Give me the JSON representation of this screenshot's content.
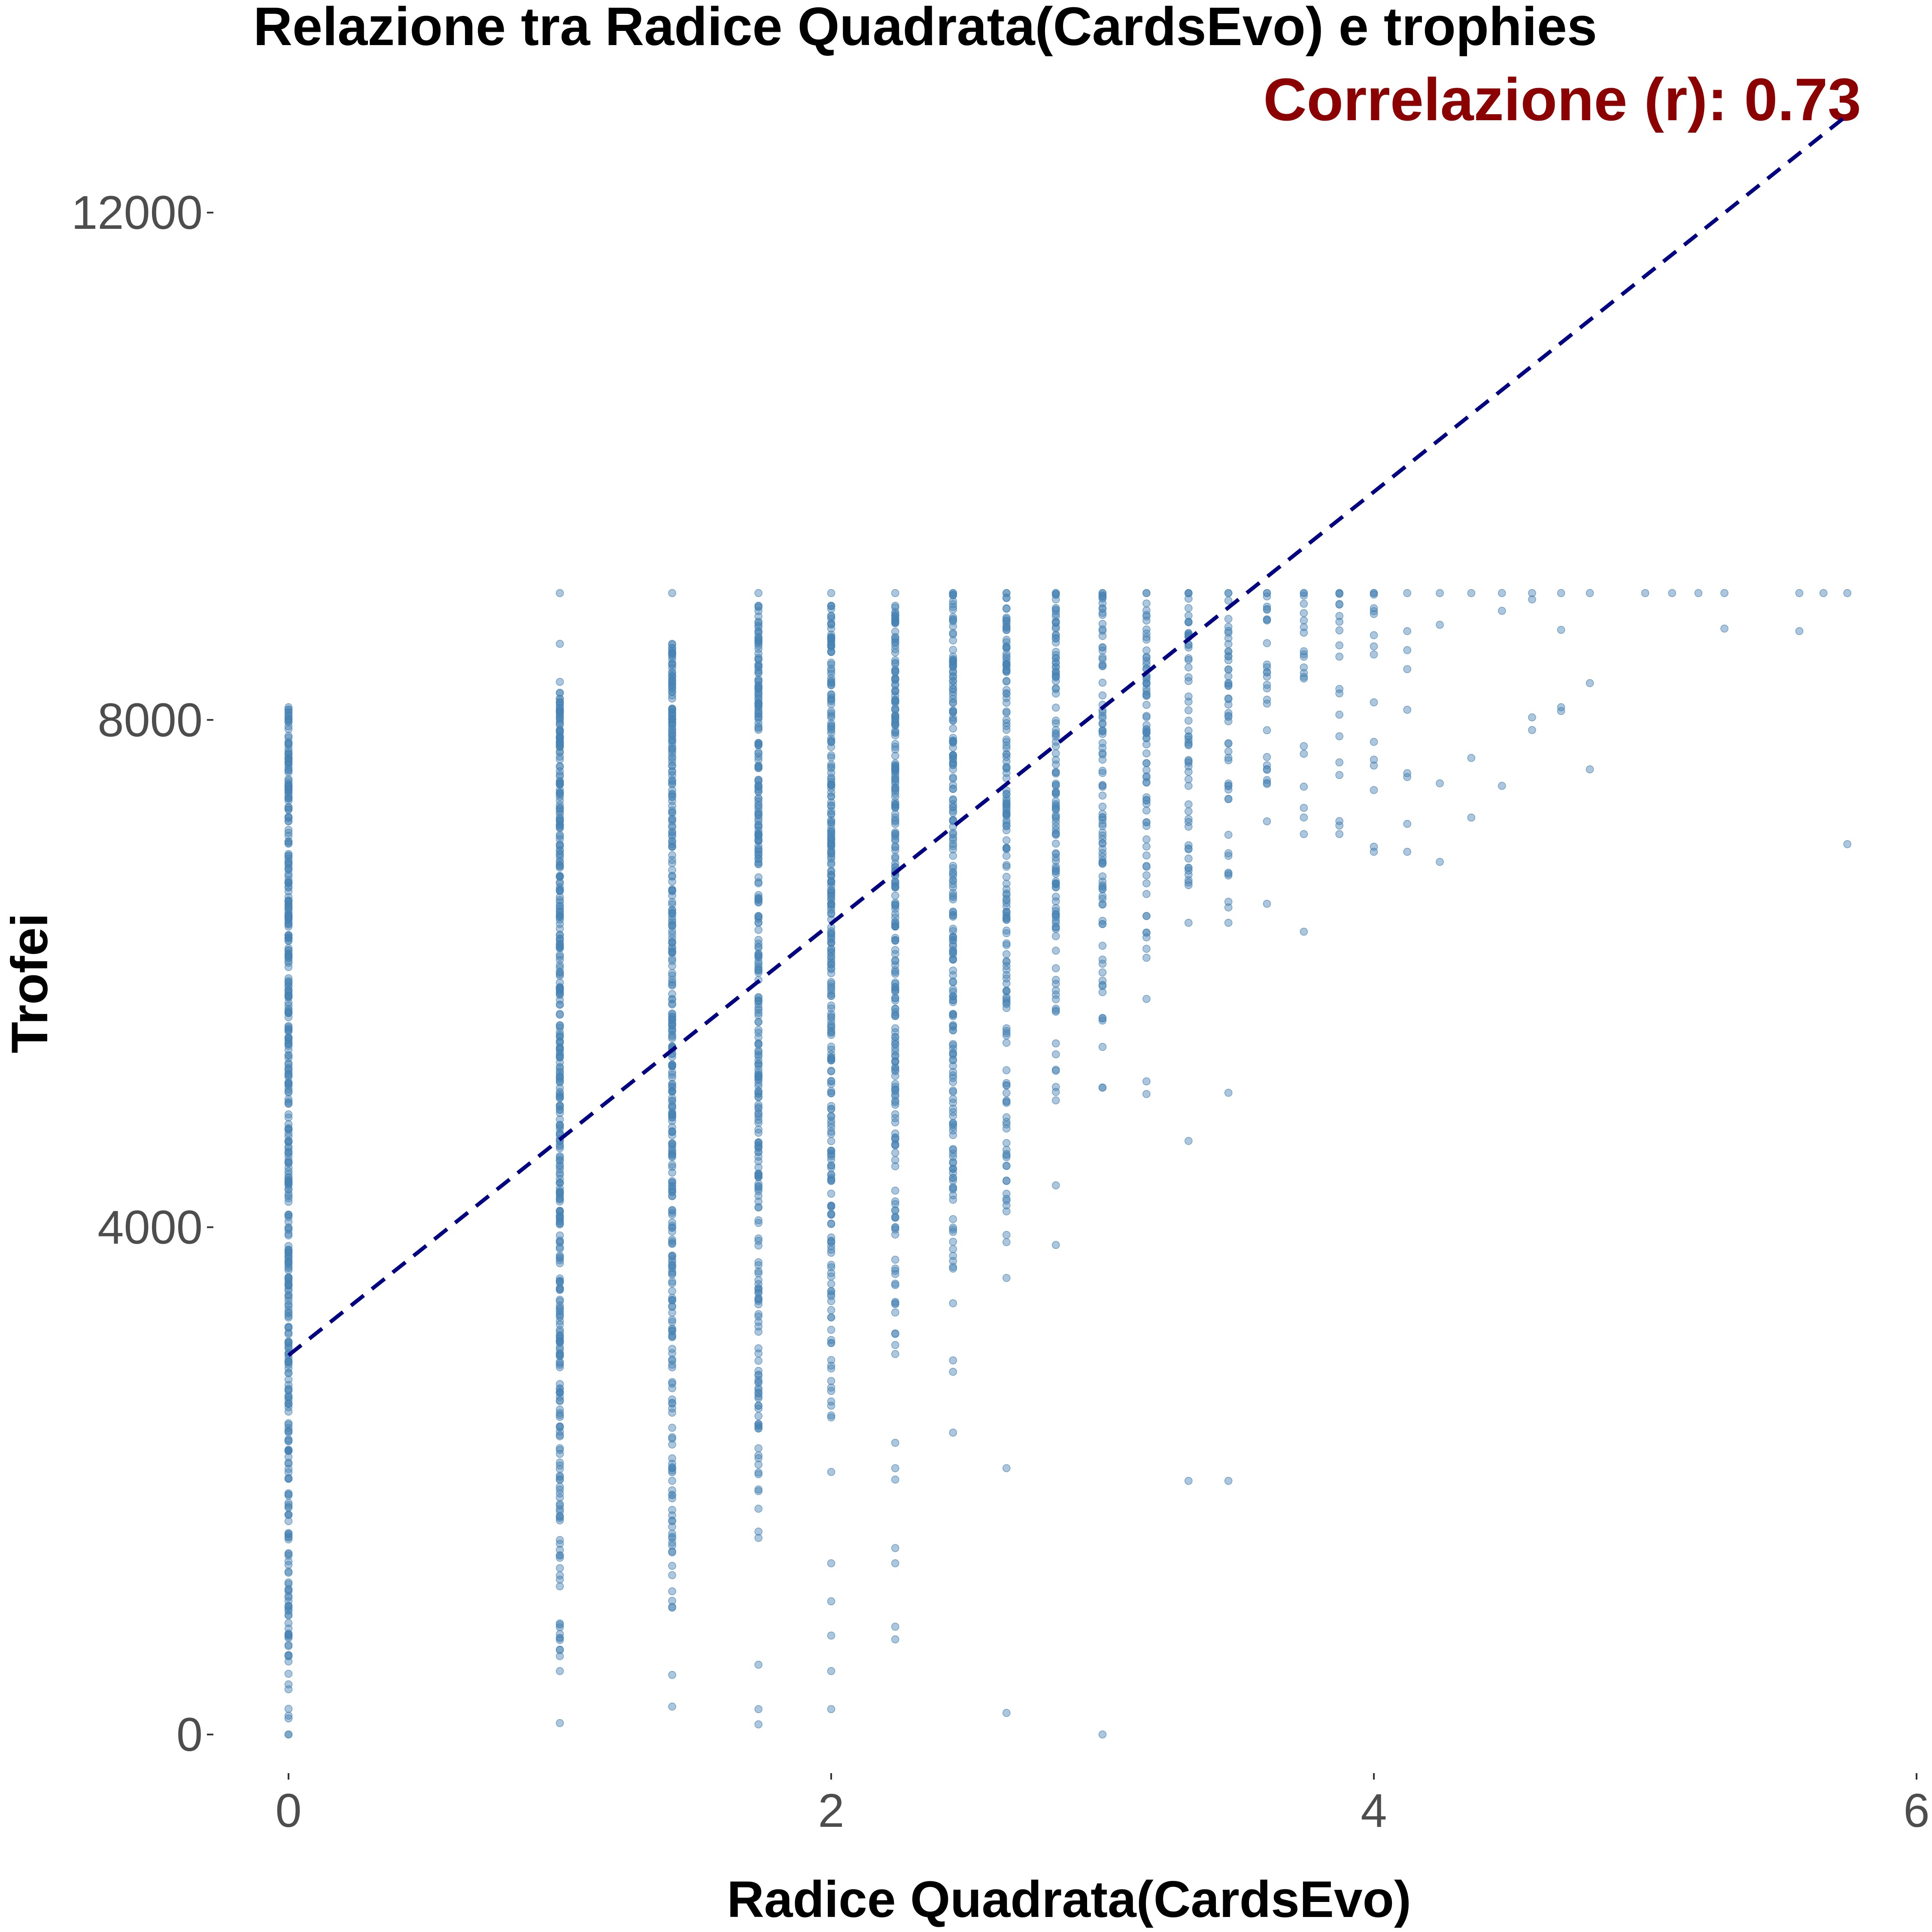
{
  "chart_data": {
    "type": "scatter",
    "title": "Relazione tra Radice Quadrata(CardsEvo) e trophies",
    "xlabel": "Radice Quadrata(CardsEvo)",
    "ylabel": "Trofei",
    "xlim": [
      -0.4,
      6.0
    ],
    "ylim": [
      -700,
      12800
    ],
    "xticks": [
      "0",
      "2",
      "4",
      "6"
    ],
    "yticks": [
      "0",
      "4000",
      "8000",
      "12000"
    ],
    "grid": false,
    "legend": "none",
    "annotation": {
      "text": "Correlazione (r): 0.73",
      "color": "#8b0000"
    },
    "point_color": "#4682b4",
    "point_opacity": 0.45,
    "trend_line": {
      "style": "dashed",
      "color": "#000080",
      "x": [
        0,
        5.74
      ],
      "y": [
        2990,
        12760
      ]
    },
    "columns": [
      {
        "x": 0.0,
        "y_min": 0,
        "y_max": 8100,
        "n": 420
      },
      {
        "x": 1.0,
        "y_min": 500,
        "y_max": 8300,
        "n": 380
      },
      {
        "x": 1.414,
        "y_min": 1000,
        "y_max": 8600,
        "n": 330
      },
      {
        "x": 1.732,
        "y_min": 1600,
        "y_max": 8900,
        "n": 300
      },
      {
        "x": 2.0,
        "y_min": 2500,
        "y_max": 8900,
        "n": 270
      },
      {
        "x": 2.236,
        "y_min": 3000,
        "y_max": 8900,
        "n": 240
      },
      {
        "x": 2.449,
        "y_min": 3400,
        "y_max": 9000,
        "n": 200
      },
      {
        "x": 2.646,
        "y_min": 3600,
        "y_max": 9000,
        "n": 160
      },
      {
        "x": 2.828,
        "y_min": 5000,
        "y_max": 9000,
        "n": 120
      },
      {
        "x": 3.0,
        "y_min": 5100,
        "y_max": 9000,
        "n": 90
      },
      {
        "x": 3.162,
        "y_min": 5800,
        "y_max": 9000,
        "n": 70
      },
      {
        "x": 3.317,
        "y_min": 6400,
        "y_max": 9000,
        "n": 55
      },
      {
        "x": 3.464,
        "y_min": 6400,
        "y_max": 9000,
        "n": 45
      },
      {
        "x": 3.606,
        "y_min": 7200,
        "y_max": 9000,
        "n": 25
      },
      {
        "x": 3.742,
        "y_min": 7100,
        "y_max": 9000,
        "n": 18
      },
      {
        "x": 3.873,
        "y_min": 7100,
        "y_max": 9000,
        "n": 16
      },
      {
        "x": 4.0,
        "y_min": 7000,
        "y_max": 9000,
        "n": 12
      }
    ],
    "points": [
      {
        "x": 0.0,
        "y": 8080
      },
      {
        "x": 0.0,
        "y": 0
      },
      {
        "x": 1.0,
        "y": 90
      },
      {
        "x": 1.0,
        "y": 9000
      },
      {
        "x": 1.0,
        "y": 8600
      },
      {
        "x": 1.414,
        "y": 220
      },
      {
        "x": 1.414,
        "y": 470
      },
      {
        "x": 1.414,
        "y": 9000
      },
      {
        "x": 1.732,
        "y": 80
      },
      {
        "x": 1.732,
        "y": 200
      },
      {
        "x": 1.732,
        "y": 550
      },
      {
        "x": 1.732,
        "y": 1550
      },
      {
        "x": 1.732,
        "y": 9000
      },
      {
        "x": 2.0,
        "y": 200
      },
      {
        "x": 2.0,
        "y": 500
      },
      {
        "x": 2.0,
        "y": 780
      },
      {
        "x": 2.0,
        "y": 1050
      },
      {
        "x": 2.0,
        "y": 1350
      },
      {
        "x": 2.0,
        "y": 2070
      },
      {
        "x": 2.0,
        "y": 9000
      },
      {
        "x": 2.236,
        "y": 750
      },
      {
        "x": 2.236,
        "y": 850
      },
      {
        "x": 2.236,
        "y": 1350
      },
      {
        "x": 2.236,
        "y": 1470
      },
      {
        "x": 2.236,
        "y": 2010
      },
      {
        "x": 2.236,
        "y": 2100
      },
      {
        "x": 2.236,
        "y": 2300
      },
      {
        "x": 2.236,
        "y": 9000
      },
      {
        "x": 2.449,
        "y": 2380
      },
      {
        "x": 2.449,
        "y": 2860
      },
      {
        "x": 2.449,
        "y": 2950
      },
      {
        "x": 2.449,
        "y": 9000
      },
      {
        "x": 2.646,
        "y": 170
      },
      {
        "x": 2.646,
        "y": 2100
      },
      {
        "x": 2.646,
        "y": 9000
      },
      {
        "x": 2.828,
        "y": 3860
      },
      {
        "x": 2.828,
        "y": 4330
      },
      {
        "x": 2.828,
        "y": 9000
      },
      {
        "x": 3.0,
        "y": 0
      },
      {
        "x": 3.0,
        "y": 9000
      },
      {
        "x": 3.162,
        "y": 5050
      },
      {
        "x": 3.162,
        "y": 5150
      },
      {
        "x": 3.162,
        "y": 9000
      },
      {
        "x": 3.317,
        "y": 2000
      },
      {
        "x": 3.317,
        "y": 4680
      },
      {
        "x": 3.317,
        "y": 9000
      },
      {
        "x": 3.464,
        "y": 2000
      },
      {
        "x": 3.464,
        "y": 5060
      },
      {
        "x": 3.464,
        "y": 9000
      },
      {
        "x": 3.606,
        "y": 6550
      },
      {
        "x": 3.606,
        "y": 9000
      },
      {
        "x": 3.742,
        "y": 6330
      },
      {
        "x": 3.742,
        "y": 9000
      },
      {
        "x": 3.873,
        "y": 9000
      },
      {
        "x": 4.0,
        "y": 6960
      },
      {
        "x": 4.0,
        "y": 9000
      },
      {
        "x": 4.123,
        "y": 6960
      },
      {
        "x": 4.123,
        "y": 7180
      },
      {
        "x": 4.123,
        "y": 7550
      },
      {
        "x": 4.123,
        "y": 7580
      },
      {
        "x": 4.123,
        "y": 8080
      },
      {
        "x": 4.123,
        "y": 8400
      },
      {
        "x": 4.123,
        "y": 8550
      },
      {
        "x": 4.123,
        "y": 8700
      },
      {
        "x": 4.123,
        "y": 9000
      },
      {
        "x": 4.243,
        "y": 6880
      },
      {
        "x": 4.243,
        "y": 7500
      },
      {
        "x": 4.243,
        "y": 8750
      },
      {
        "x": 4.243,
        "y": 9000
      },
      {
        "x": 4.359,
        "y": 7230
      },
      {
        "x": 4.359,
        "y": 7700
      },
      {
        "x": 4.359,
        "y": 9000
      },
      {
        "x": 4.472,
        "y": 7480
      },
      {
        "x": 4.472,
        "y": 8860
      },
      {
        "x": 4.472,
        "y": 9000
      },
      {
        "x": 4.583,
        "y": 7920
      },
      {
        "x": 4.583,
        "y": 8020
      },
      {
        "x": 4.583,
        "y": 8950
      },
      {
        "x": 4.583,
        "y": 9000
      },
      {
        "x": 4.69,
        "y": 8070
      },
      {
        "x": 4.69,
        "y": 8100
      },
      {
        "x": 4.69,
        "y": 8710
      },
      {
        "x": 4.69,
        "y": 9000
      },
      {
        "x": 4.796,
        "y": 7610
      },
      {
        "x": 4.796,
        "y": 8290
      },
      {
        "x": 4.796,
        "y": 9000
      },
      {
        "x": 5.0,
        "y": 9000
      },
      {
        "x": 5.099,
        "y": 9000
      },
      {
        "x": 5.196,
        "y": 9000
      },
      {
        "x": 5.292,
        "y": 8720
      },
      {
        "x": 5.292,
        "y": 9000
      },
      {
        "x": 5.568,
        "y": 8700
      },
      {
        "x": 5.568,
        "y": 9000
      },
      {
        "x": 5.657,
        "y": 9000
      },
      {
        "x": 5.745,
        "y": 7020
      },
      {
        "x": 5.745,
        "y": 9000
      }
    ]
  }
}
